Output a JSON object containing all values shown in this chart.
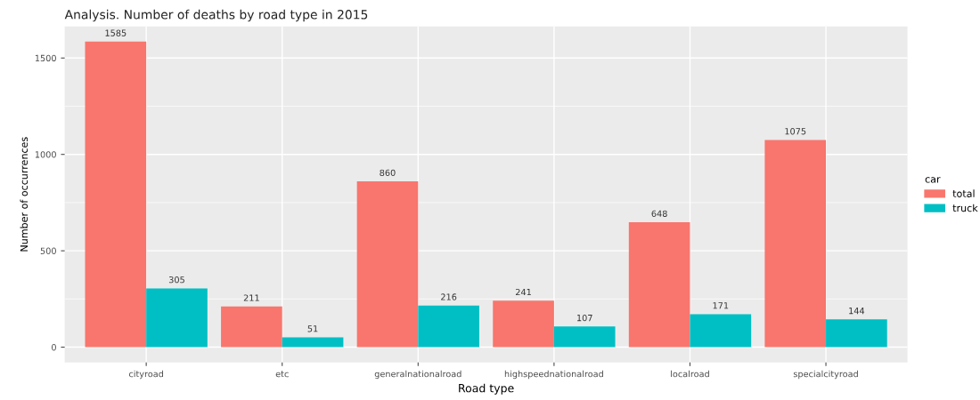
{
  "chart_data": {
    "type": "bar",
    "title": "Analysis. Number of deaths by road type in 2015",
    "xlabel": "Road type",
    "ylabel": "Number of occurrences",
    "legend_title": "car",
    "categories": [
      "cityroad",
      "etc",
      "generalnationalroad",
      "highspeednationalroad",
      "localroad",
      "specialcityroad"
    ],
    "series": [
      {
        "name": "total",
        "color": "#f8766d",
        "values": [
          1585,
          211,
          860,
          241,
          648,
          1075
        ]
      },
      {
        "name": "truck",
        "color": "#00bfc4",
        "values": [
          305,
          51,
          216,
          107,
          171,
          144
        ]
      }
    ],
    "ylim": [
      -79,
      1664
    ],
    "yticks": [
      0,
      500,
      1000,
      1500
    ],
    "grid": true,
    "legend": "right",
    "data_labels": true
  }
}
